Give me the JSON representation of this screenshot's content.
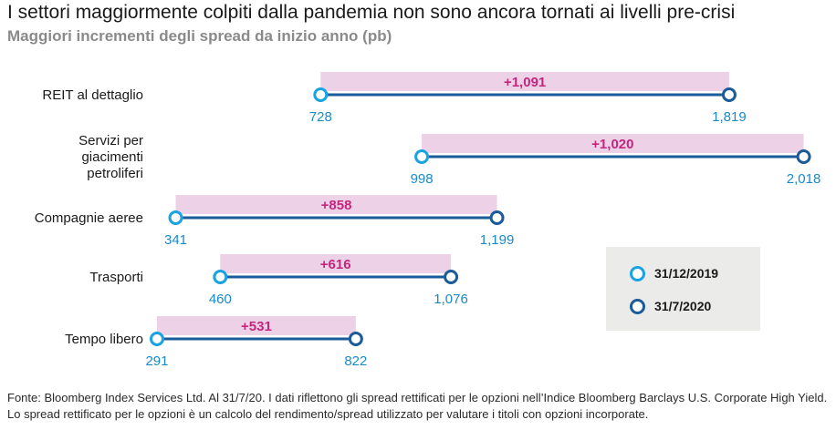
{
  "title": "I settori maggiormente colpiti dalla pandemia non sono ancora tornati ai livelli pre-crisi",
  "subtitle": "Maggiori incrementi degli spread da inizio anno (pb)",
  "chart_data": {
    "type": "dumbbell",
    "title": "I settori maggiormente colpiti dalla pandemia non sono ancora tornati ai livelli pre-crisi",
    "subtitle": "Maggiori incrementi degli spread da inizio anno (pb)",
    "unit": "pb",
    "series": [
      {
        "name": "31/12/2019",
        "color": "#19a3e0"
      },
      {
        "name": "31/7/2020",
        "color": "#1b5b9a"
      }
    ],
    "categories": [
      {
        "label": [
          "REIT al dettaglio"
        ],
        "start": 728,
        "end": 1819,
        "start_label": "728",
        "end_label": "1,819",
        "change": "+1,091"
      },
      {
        "label": [
          "Servizi per",
          "giacimenti",
          "petroliferi"
        ],
        "start": 998,
        "end": 2018,
        "start_label": "998",
        "end_label": "2,018",
        "change": "+1,020"
      },
      {
        "label": [
          "Compagnie aeree"
        ],
        "start": 341,
        "end": 1199,
        "start_label": "341",
        "end_label": "1,199",
        "change": "+858"
      },
      {
        "label": [
          "Trasporti"
        ],
        "start": 460,
        "end": 1076,
        "start_label": "460",
        "end_label": "1,076",
        "change": "+616"
      },
      {
        "label": [
          "Tempo libero"
        ],
        "start": 291,
        "end": 822,
        "start_label": "291",
        "end_label": "822",
        "change": "+531"
      }
    ],
    "xlim": [
      0,
      2100
    ],
    "colors": {
      "change_band": "#edd1e6",
      "change_text": "#c2267f",
      "lead_line": "#19a3e0",
      "value_text": "#1a8ac8"
    }
  },
  "legend": {
    "start_label": "31/12/2019",
    "end_label": "31/7/2020"
  },
  "source": "Fonte: Bloomberg Index Services Ltd. Al 31/7/20. I dati riflettono gli spread rettificati per le opzioni nell’Indice Bloomberg Barclays U.S. Corporate High Yield. Lo spread rettificato per le opzioni è un calcolo del rendimento/spread utilizzato per valutare i titoli con opzioni incorporate."
}
